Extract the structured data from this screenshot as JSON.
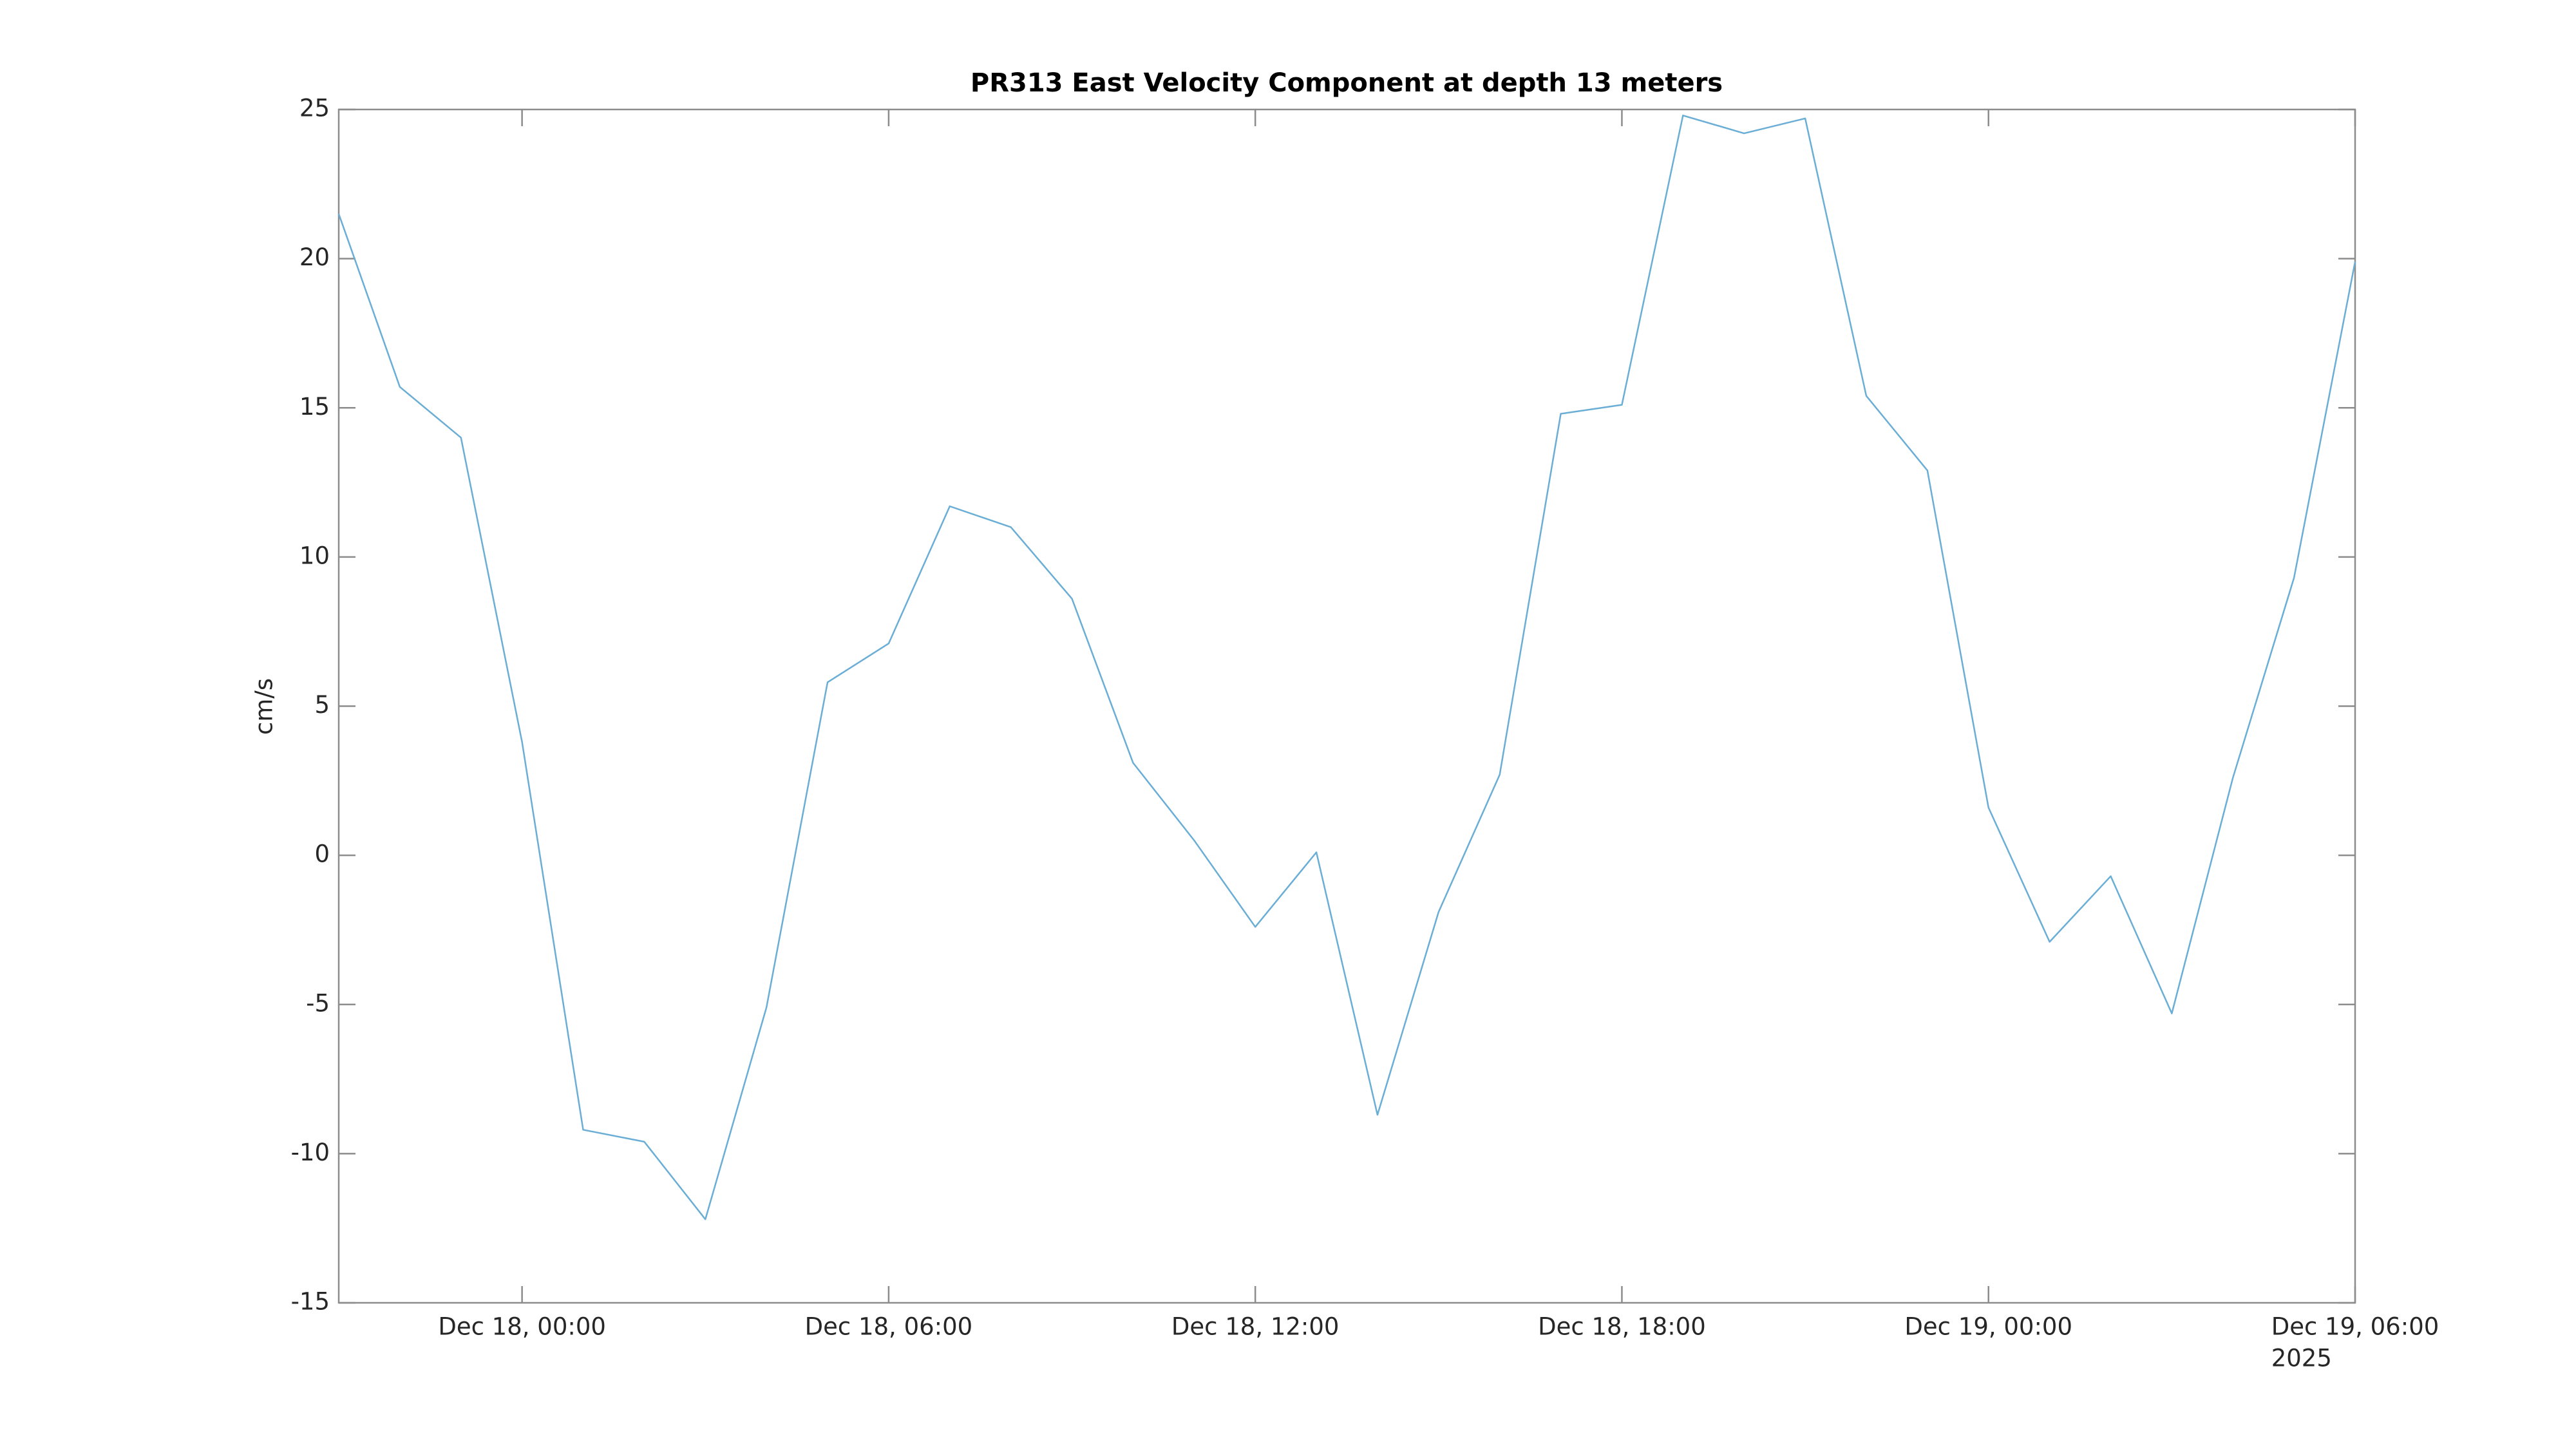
{
  "chart_data": {
    "type": "line",
    "title": "PR313 East Velocity Component at depth 13 meters",
    "y_label": "cm/s",
    "x": [
      "2025-12-17 21:00",
      "2025-12-17 22:00",
      "2025-12-17 23:00",
      "2025-12-18 00:00",
      "2025-12-18 01:00",
      "2025-12-18 02:00",
      "2025-12-18 03:00",
      "2025-12-18 04:00",
      "2025-12-18 05:00",
      "2025-12-18 06:00",
      "2025-12-18 07:00",
      "2025-12-18 08:00",
      "2025-12-18 09:00",
      "2025-12-18 10:00",
      "2025-12-18 11:00",
      "2025-12-18 12:00",
      "2025-12-18 13:00",
      "2025-12-18 14:00",
      "2025-12-18 15:00",
      "2025-12-18 16:00",
      "2025-12-18 17:00",
      "2025-12-18 18:00",
      "2025-12-18 19:00",
      "2025-12-18 20:00",
      "2025-12-18 21:00",
      "2025-12-18 22:00",
      "2025-12-18 23:00",
      "2025-12-19 00:00",
      "2025-12-19 01:00",
      "2025-12-19 02:00",
      "2025-12-19 03:00",
      "2025-12-19 04:00",
      "2025-12-19 05:00",
      "2025-12-19 06:00"
    ],
    "series": [
      {
        "name": "East Velocity",
        "color": "#6aaed6",
        "values": [
          21.5,
          15.7,
          14.0,
          3.8,
          -9.2,
          -9.6,
          -12.2,
          -5.1,
          5.8,
          7.1,
          11.7,
          11.0,
          8.6,
          3.1,
          0.5,
          -2.4,
          0.1,
          -8.7,
          -1.9,
          2.7,
          14.8,
          15.1,
          24.8,
          24.2,
          24.7,
          15.4,
          12.9,
          1.6,
          -2.9,
          -0.7,
          -5.3,
          2.6,
          9.3,
          19.9
        ]
      }
    ],
    "xlim": [
      "2025-12-17 21:00",
      "2025-12-19 06:00"
    ],
    "xticks": [
      {
        "value": "2025-12-18 00:00",
        "label": "Dec 18, 00:00"
      },
      {
        "value": "2025-12-18 06:00",
        "label": "Dec 18, 06:00"
      },
      {
        "value": "2025-12-18 12:00",
        "label": "Dec 18, 12:00"
      },
      {
        "value": "2025-12-18 18:00",
        "label": "Dec 18, 18:00"
      },
      {
        "value": "2025-12-19 00:00",
        "label": "Dec 19, 00:00"
      },
      {
        "value": "2025-12-19 06:00",
        "label": "Dec 19, 06:00"
      }
    ],
    "x_year_label": "2025",
    "ylim": [
      -15,
      25
    ],
    "yticks": [
      -15,
      -10,
      -5,
      0,
      5,
      10,
      15,
      20,
      25
    ],
    "grid": false
  }
}
